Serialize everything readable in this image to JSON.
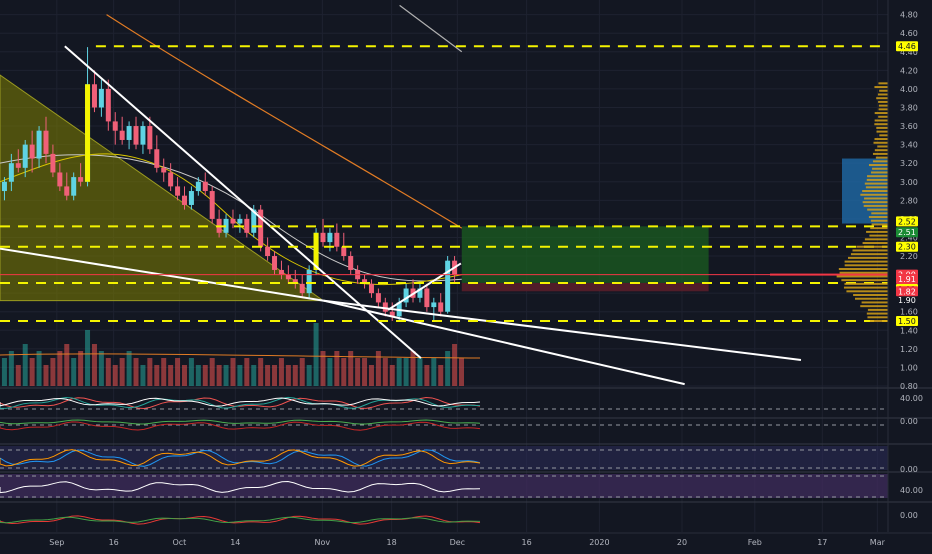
{
  "chart_data": {
    "type": "candlestick",
    "title": "",
    "y_ticks": [
      "4.80",
      "4.60",
      "4.40",
      "4.20",
      "4.00",
      "3.80",
      "3.60",
      "3.40",
      "3.20",
      "3.00",
      "2.80",
      "2.60",
      "2.40",
      "2.20",
      "2.00",
      "1.80",
      "1.60",
      "1.40",
      "1.20",
      "1.00",
      "0.80"
    ],
    "ylim": [
      0.8,
      4.85
    ],
    "x_labels": [
      "Sep",
      "16",
      "Oct",
      "14",
      "Nov",
      "18",
      "Dec",
      "16",
      "2020",
      "20",
      "Feb",
      "17",
      "Mar"
    ],
    "price_badges": [
      {
        "label": "4.46",
        "value": 4.46,
        "color": "#ffff00"
      },
      {
        "label": "2.52",
        "value": 2.52,
        "color": "#ffff00"
      },
      {
        "label": "2.51",
        "value": 2.51,
        "color": "#1b8b35"
      },
      {
        "label": "2.30",
        "value": 2.3,
        "color": "#ffff00"
      },
      {
        "label": "2.00",
        "value": 2.0,
        "color": "#f23645"
      },
      {
        "label": "1.91",
        "value": 1.91,
        "color": "#f23645"
      },
      {
        "label": "1.91",
        "value": 1.91,
        "color": "#ffff00"
      },
      {
        "label": "1.90",
        "value": 1.9,
        "color": "#131722"
      },
      {
        "label": "1.82",
        "value": 1.82,
        "color": "#f23645"
      },
      {
        "label": "1.50",
        "value": 1.5,
        "color": "#ffff00"
      }
    ],
    "horizontal_levels": [
      4.46,
      2.52,
      2.3,
      1.91,
      1.5
    ],
    "candles": [
      {
        "o": 2.9,
        "h": 3.05,
        "l": 2.8,
        "c": 3.0
      },
      {
        "o": 3.0,
        "h": 3.3,
        "l": 2.9,
        "c": 3.2
      },
      {
        "o": 3.2,
        "h": 3.35,
        "l": 3.1,
        "c": 3.15
      },
      {
        "o": 3.15,
        "h": 3.45,
        "l": 3.05,
        "c": 3.4
      },
      {
        "o": 3.4,
        "h": 3.55,
        "l": 3.1,
        "c": 3.25
      },
      {
        "o": 3.25,
        "h": 3.6,
        "l": 3.15,
        "c": 3.55
      },
      {
        "o": 3.55,
        "h": 3.7,
        "l": 3.2,
        "c": 3.3
      },
      {
        "o": 3.3,
        "h": 3.4,
        "l": 3.05,
        "c": 3.1
      },
      {
        "o": 3.1,
        "h": 3.2,
        "l": 2.9,
        "c": 2.95
      },
      {
        "o": 2.95,
        "h": 3.1,
        "l": 2.8,
        "c": 2.85
      },
      {
        "o": 2.85,
        "h": 3.1,
        "l": 2.8,
        "c": 3.05
      },
      {
        "o": 3.05,
        "h": 3.2,
        "l": 2.95,
        "c": 3.0
      },
      {
        "o": 3.0,
        "h": 4.45,
        "l": 2.95,
        "c": 4.05
      },
      {
        "o": 4.05,
        "h": 4.2,
        "l": 3.75,
        "c": 3.8
      },
      {
        "o": 3.8,
        "h": 4.1,
        "l": 3.7,
        "c": 4.0
      },
      {
        "o": 4.0,
        "h": 4.1,
        "l": 3.55,
        "c": 3.65
      },
      {
        "o": 3.65,
        "h": 3.75,
        "l": 3.4,
        "c": 3.55
      },
      {
        "o": 3.55,
        "h": 3.7,
        "l": 3.4,
        "c": 3.45
      },
      {
        "o": 3.45,
        "h": 3.65,
        "l": 3.35,
        "c": 3.6
      },
      {
        "o": 3.6,
        "h": 3.7,
        "l": 3.35,
        "c": 3.4
      },
      {
        "o": 3.4,
        "h": 3.65,
        "l": 3.3,
        "c": 3.6
      },
      {
        "o": 3.6,
        "h": 3.7,
        "l": 3.3,
        "c": 3.35
      },
      {
        "o": 3.35,
        "h": 3.5,
        "l": 3.1,
        "c": 3.15
      },
      {
        "o": 3.15,
        "h": 3.25,
        "l": 3.0,
        "c": 3.1
      },
      {
        "o": 3.1,
        "h": 3.2,
        "l": 2.9,
        "c": 2.95
      },
      {
        "o": 2.95,
        "h": 3.05,
        "l": 2.8,
        "c": 2.85
      },
      {
        "o": 2.85,
        "h": 2.95,
        "l": 2.7,
        "c": 2.75
      },
      {
        "o": 2.75,
        "h": 2.95,
        "l": 2.7,
        "c": 2.9
      },
      {
        "o": 2.9,
        "h": 3.05,
        "l": 2.85,
        "c": 3.0
      },
      {
        "o": 3.0,
        "h": 3.1,
        "l": 2.85,
        "c": 2.9
      },
      {
        "o": 2.9,
        "h": 2.95,
        "l": 2.55,
        "c": 2.6
      },
      {
        "o": 2.6,
        "h": 2.7,
        "l": 2.4,
        "c": 2.45
      },
      {
        "o": 2.45,
        "h": 2.65,
        "l": 2.4,
        "c": 2.6
      },
      {
        "o": 2.6,
        "h": 2.7,
        "l": 2.5,
        "c": 2.55
      },
      {
        "o": 2.55,
        "h": 2.65,
        "l": 2.45,
        "c": 2.6
      },
      {
        "o": 2.6,
        "h": 2.65,
        "l": 2.4,
        "c": 2.45
      },
      {
        "o": 2.45,
        "h": 2.75,
        "l": 2.4,
        "c": 2.7
      },
      {
        "o": 2.7,
        "h": 2.75,
        "l": 2.25,
        "c": 2.3
      },
      {
        "o": 2.3,
        "h": 2.4,
        "l": 2.15,
        "c": 2.2
      },
      {
        "o": 2.2,
        "h": 2.25,
        "l": 2.0,
        "c": 2.05
      },
      {
        "o": 2.05,
        "h": 2.15,
        "l": 1.95,
        "c": 2.0
      },
      {
        "o": 2.0,
        "h": 2.1,
        "l": 1.9,
        "c": 1.95
      },
      {
        "o": 1.95,
        "h": 2.05,
        "l": 1.85,
        "c": 1.9
      },
      {
        "o": 1.9,
        "h": 2.0,
        "l": 1.75,
        "c": 1.8
      },
      {
        "o": 1.8,
        "h": 2.1,
        "l": 1.75,
        "c": 2.05
      },
      {
        "o": 2.05,
        "h": 2.5,
        "l": 2.0,
        "c": 2.45
      },
      {
        "o": 2.45,
        "h": 2.6,
        "l": 2.3,
        "c": 2.35
      },
      {
        "o": 2.35,
        "h": 2.5,
        "l": 2.25,
        "c": 2.45
      },
      {
        "o": 2.45,
        "h": 2.55,
        "l": 2.25,
        "c": 2.3
      },
      {
        "o": 2.3,
        "h": 2.45,
        "l": 2.15,
        "c": 2.2
      },
      {
        "o": 2.2,
        "h": 2.25,
        "l": 2.0,
        "c": 2.05
      },
      {
        "o": 2.05,
        "h": 2.1,
        "l": 1.9,
        "c": 1.95
      },
      {
        "o": 1.95,
        "h": 2.0,
        "l": 1.85,
        "c": 1.9
      },
      {
        "o": 1.9,
        "h": 1.95,
        "l": 1.75,
        "c": 1.8
      },
      {
        "o": 1.8,
        "h": 1.85,
        "l": 1.65,
        "c": 1.7
      },
      {
        "o": 1.7,
        "h": 1.75,
        "l": 1.55,
        "c": 1.6
      },
      {
        "o": 1.6,
        "h": 1.7,
        "l": 1.5,
        "c": 1.55
      },
      {
        "o": 1.55,
        "h": 1.75,
        "l": 1.5,
        "c": 1.7
      },
      {
        "o": 1.7,
        "h": 1.9,
        "l": 1.65,
        "c": 1.85
      },
      {
        "o": 1.85,
        "h": 1.95,
        "l": 1.7,
        "c": 1.75
      },
      {
        "o": 1.75,
        "h": 1.9,
        "l": 1.7,
        "c": 1.85
      },
      {
        "o": 1.85,
        "h": 1.9,
        "l": 1.6,
        "c": 1.65
      },
      {
        "o": 1.65,
        "h": 1.75,
        "l": 1.5,
        "c": 1.7
      },
      {
        "o": 1.7,
        "h": 1.8,
        "l": 1.55,
        "c": 1.6
      },
      {
        "o": 1.6,
        "h": 2.2,
        "l": 1.58,
        "c": 2.15
      },
      {
        "o": 2.15,
        "h": 2.2,
        "l": 1.9,
        "c": 2.0
      }
    ],
    "x_domain": [
      0,
      100
    ],
    "candle_x0": 0.5,
    "candle_dx": 0.53,
    "trendlines": [
      {
        "from": [
          7.3,
          4.46
        ],
        "to": [
          47.4,
          1.1
        ],
        "color": "#ffffff"
      },
      {
        "from": [
          0,
          2.28
        ],
        "to": [
          36.4,
          1.72
        ],
        "color": "#ffffff"
      },
      {
        "from": [
          36.4,
          1.72
        ],
        "to": [
          77.1,
          0.82
        ],
        "color": "#ffffff"
      },
      {
        "from": [
          36.4,
          1.72
        ],
        "to": [
          90.2,
          1.08
        ],
        "color": "#ffffff"
      },
      {
        "from": [
          43.7,
          1.62
        ],
        "to": [
          51.9,
          2.12
        ],
        "color": "#ffffff"
      }
    ],
    "triangle": {
      "points": [
        [
          0,
          4.15
        ],
        [
          36.4,
          1.72
        ],
        [
          0,
          1.72
        ]
      ],
      "color": "#808000"
    },
    "target_box": {
      "x": [
        52.0,
        79.8
      ],
      "y": [
        1.91,
        2.52
      ],
      "color": "#1b5e20"
    },
    "stop_box": {
      "x": [
        52.0,
        79.8
      ],
      "y": [
        1.82,
        1.91
      ],
      "color": "#5d1f2a"
    },
    "volume": [
      4,
      5,
      3,
      6,
      4,
      5,
      3,
      4,
      5,
      6,
      4,
      5,
      8,
      6,
      5,
      4,
      3,
      4,
      5,
      4,
      3,
      4,
      3,
      4,
      3,
      4,
      3,
      4,
      3,
      3,
      4,
      3,
      3,
      4,
      3,
      4,
      3,
      4,
      3,
      3,
      4,
      3,
      3,
      4,
      3,
      9,
      5,
      4,
      5,
      4,
      5,
      4,
      4,
      3,
      5,
      4,
      3,
      4,
      4,
      5,
      4,
      3,
      4,
      3,
      5,
      6,
      4
    ]
  }
}
